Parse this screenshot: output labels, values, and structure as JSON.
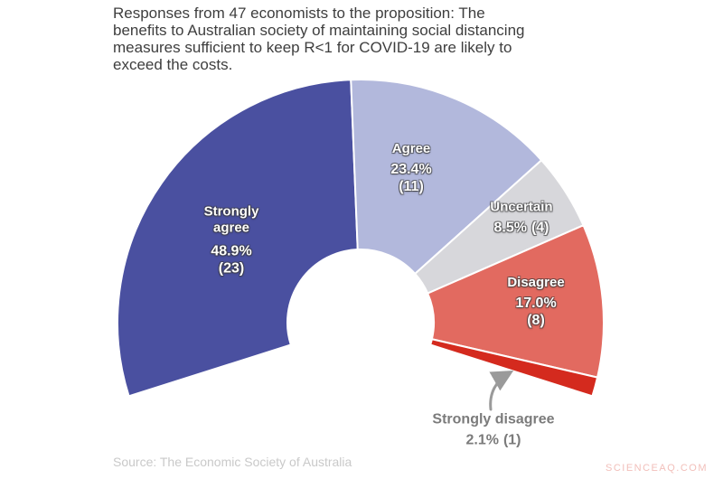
{
  "title_lines": [
    "Responses from 47 economists to the proposition: The",
    "benefits to Australian society of maintaining social distancing",
    "measures sufficient to keep R<1 for COVID-19 are likely to",
    "exceed the costs."
  ],
  "source": "Source: The Economic Society of Australia",
  "watermark": "SCIENCEAQ.COM",
  "chart_data": {
    "type": "pie",
    "subtype": "half-donut-gauge",
    "title": "Responses from 47 economists to the proposition: The benefits to Australian society of maintaining social distancing measures sufficient to keep R<1 for COVID-19 are likely to exceed the costs.",
    "total_respondents": 47,
    "start_angle_deg": 197.6,
    "end_angle_deg": -17.6,
    "inner_radius_ratio": 0.3,
    "legend": "labels-inside",
    "annotation_color": "#9a9a9a",
    "separator_color": "#ffffff",
    "segments": [
      {
        "label": "Strongly agree",
        "count": 23,
        "pct": 48.9,
        "pct_label": "48.9%",
        "count_label": "(23)",
        "color": "#4a50a0"
      },
      {
        "label": "Agree",
        "count": 11,
        "pct": 23.4,
        "pct_label": "23.4%",
        "count_label": "(11)",
        "color": "#b2b8dc"
      },
      {
        "label": "Uncertain",
        "count": 4,
        "pct": 8.5,
        "pct_label": "8.5%",
        "count_label": "(4)",
        "color": "#d7d7db"
      },
      {
        "label": "Disagree",
        "count": 8,
        "pct": 17.0,
        "pct_label": "17.0%",
        "count_label": "(8)",
        "color": "#e26a60"
      },
      {
        "label": "Strongly disagree",
        "count": 1,
        "pct": 2.1,
        "pct_label": "2.1%",
        "count_label": "(1)",
        "color": "#d42a1e"
      }
    ]
  }
}
